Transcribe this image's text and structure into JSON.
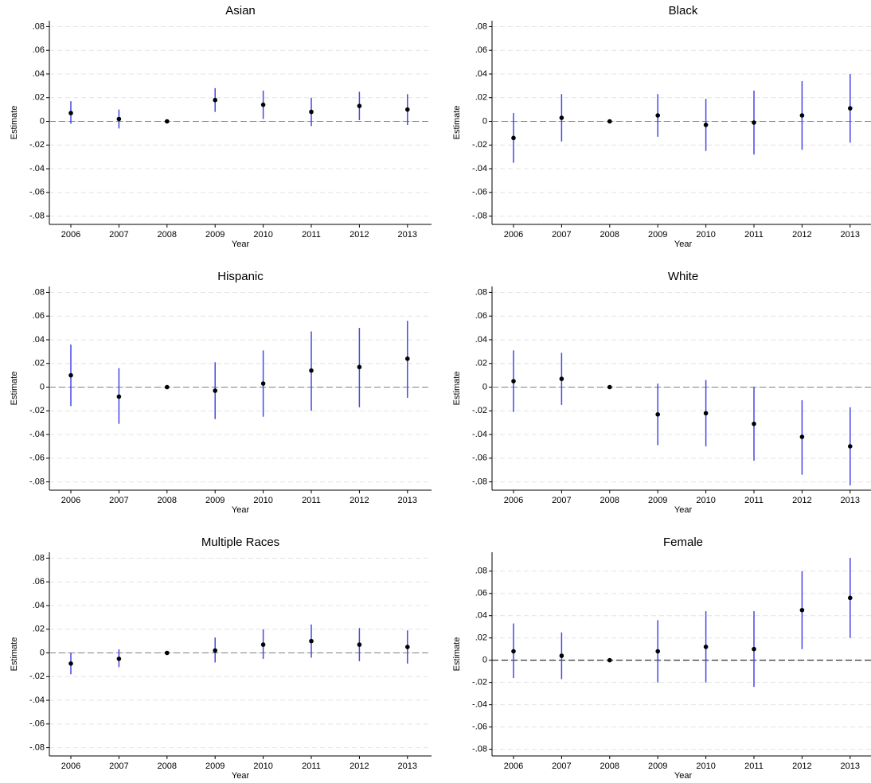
{
  "chart_data": [
    {
      "type": "errorbar",
      "title": "Asian",
      "xlabel": "Year",
      "ylabel": "Estimate",
      "categories": [
        "2006",
        "2007",
        "2008",
        "2009",
        "2010",
        "2011",
        "2012",
        "2013"
      ],
      "values": [
        0.007,
        0.002,
        0,
        0.018,
        0.014,
        0.008,
        0.013,
        0.01
      ],
      "lower": [
        -0.002,
        -0.006,
        0,
        0.008,
        0.002,
        -0.004,
        0.001,
        -0.003
      ],
      "upper": [
        0.017,
        0.01,
        0,
        0.028,
        0.026,
        0.02,
        0.025,
        0.023
      ],
      "point_color": "#000000",
      "bar_color": "#4646e6",
      "refline": 0,
      "refline_color": "#808080",
      "ylim": [
        -0.087,
        0.085
      ],
      "grid": true,
      "yticks": [
        {
          "value": -0.08,
          "label": "-.08"
        },
        {
          "value": -0.06,
          "label": "-.06"
        },
        {
          "value": -0.04,
          "label": "-.04"
        },
        {
          "value": -0.02,
          "label": "-.02"
        },
        0,
        {
          "value": 0.02,
          "label": ".02"
        },
        {
          "value": 0.04,
          "label": ".04"
        },
        {
          "value": 0.06,
          "label": ".06"
        },
        {
          "value": 0.08,
          "label": ".08"
        }
      ]
    },
    {
      "type": "errorbar",
      "title": "Black",
      "xlabel": "Year",
      "ylabel": "Estimate",
      "categories": [
        "2006",
        "2007",
        "2008",
        "2009",
        "2010",
        "2011",
        "2012",
        "2013"
      ],
      "values": [
        -0.014,
        0.003,
        0,
        0.005,
        -0.003,
        -0.001,
        0.005,
        0.011
      ],
      "lower": [
        -0.035,
        -0.017,
        0,
        -0.013,
        -0.025,
        -0.028,
        -0.024,
        -0.018
      ],
      "upper": [
        0.007,
        0.023,
        0,
        0.023,
        0.019,
        0.026,
        0.034,
        0.04
      ],
      "point_color": "#000000",
      "bar_color": "#4646e6",
      "refline": 0,
      "refline_color": "#808080",
      "ylim": [
        -0.087,
        0.085
      ],
      "grid": true,
      "yticks": [
        {
          "value": -0.08,
          "label": "-.08"
        },
        {
          "value": -0.06,
          "label": "-.06"
        },
        {
          "value": -0.04,
          "label": "-.04"
        },
        {
          "value": -0.02,
          "label": "-.02"
        },
        0,
        {
          "value": 0.02,
          "label": ".02"
        },
        {
          "value": 0.04,
          "label": ".04"
        },
        {
          "value": 0.06,
          "label": ".06"
        },
        {
          "value": 0.08,
          "label": ".08"
        }
      ]
    },
    {
      "type": "errorbar",
      "title": "Hispanic",
      "xlabel": "Year",
      "ylabel": "Estimate",
      "categories": [
        "2006",
        "2007",
        "2008",
        "2009",
        "2010",
        "2011",
        "2012",
        "2013"
      ],
      "values": [
        0.01,
        -0.008,
        0,
        -0.003,
        0.003,
        0.014,
        0.017,
        0.024
      ],
      "lower": [
        -0.016,
        -0.031,
        0,
        -0.027,
        -0.025,
        -0.02,
        -0.017,
        -0.009
      ],
      "upper": [
        0.036,
        0.016,
        0,
        0.021,
        0.031,
        0.047,
        0.05,
        0.056
      ],
      "point_color": "#000000",
      "bar_color": "#4646e6",
      "refline": 0,
      "refline_color": "#808080",
      "ylim": [
        -0.087,
        0.085
      ],
      "grid": true,
      "yticks": [
        {
          "value": -0.08,
          "label": "-.08"
        },
        {
          "value": -0.06,
          "label": "-.06"
        },
        {
          "value": -0.04,
          "label": "-.04"
        },
        {
          "value": -0.02,
          "label": "-.02"
        },
        0,
        {
          "value": 0.02,
          "label": ".02"
        },
        {
          "value": 0.04,
          "label": ".04"
        },
        {
          "value": 0.06,
          "label": ".06"
        },
        {
          "value": 0.08,
          "label": ".08"
        }
      ]
    },
    {
      "type": "errorbar",
      "title": "White",
      "xlabel": "Year",
      "ylabel": "Estimate",
      "categories": [
        "2006",
        "2007",
        "2008",
        "2009",
        "2010",
        "2011",
        "2012",
        "2013"
      ],
      "values": [
        0.005,
        0.007,
        0,
        -0.023,
        -0.022,
        -0.031,
        -0.042,
        -0.05
      ],
      "lower": [
        -0.021,
        -0.015,
        0,
        -0.049,
        -0.05,
        -0.062,
        -0.074,
        -0.083
      ],
      "upper": [
        0.031,
        0.029,
        0,
        0.003,
        0.006,
        0.0,
        -0.011,
        -0.017
      ],
      "point_color": "#000000",
      "bar_color": "#4646e6",
      "refline": 0,
      "refline_color": "#808080",
      "ylim": [
        -0.087,
        0.085
      ],
      "grid": true,
      "yticks": [
        {
          "value": -0.08,
          "label": "-.08"
        },
        {
          "value": -0.06,
          "label": "-.06"
        },
        {
          "value": -0.04,
          "label": "-.04"
        },
        {
          "value": -0.02,
          "label": "-.02"
        },
        0,
        {
          "value": 0.02,
          "label": ".02"
        },
        {
          "value": 0.04,
          "label": ".04"
        },
        {
          "value": 0.06,
          "label": ".06"
        },
        {
          "value": 0.08,
          "label": ".08"
        }
      ]
    },
    {
      "type": "errorbar",
      "title": "Multiple Races",
      "xlabel": "Year",
      "ylabel": "Estimate",
      "categories": [
        "2006",
        "2007",
        "2008",
        "2009",
        "2010",
        "2011",
        "2012",
        "2013"
      ],
      "values": [
        -0.009,
        -0.005,
        0,
        0.002,
        0.007,
        0.01,
        0.007,
        0.005
      ],
      "lower": [
        -0.018,
        -0.012,
        0,
        -0.008,
        -0.005,
        -0.004,
        -0.007,
        -0.009
      ],
      "upper": [
        0.0,
        0.003,
        0,
        0.013,
        0.02,
        0.024,
        0.021,
        0.019
      ],
      "point_color": "#000000",
      "bar_color": "#4646e6",
      "refline": 0,
      "refline_color": "#808080",
      "ylim": [
        -0.087,
        0.085
      ],
      "grid": true,
      "yticks": [
        {
          "value": -0.08,
          "label": "-.08"
        },
        {
          "value": -0.06,
          "label": "-.06"
        },
        {
          "value": -0.04,
          "label": "-.04"
        },
        {
          "value": -0.02,
          "label": "-.02"
        },
        0,
        {
          "value": 0.02,
          "label": ".02"
        },
        {
          "value": 0.04,
          "label": ".04"
        },
        {
          "value": 0.06,
          "label": ".06"
        },
        {
          "value": 0.08,
          "label": ".08"
        }
      ]
    },
    {
      "type": "errorbar",
      "title": "Female",
      "xlabel": "Year",
      "ylabel": "Estimate",
      "categories": [
        "2006",
        "2007",
        "2008",
        "2009",
        "2010",
        "2011",
        "2012",
        "2013"
      ],
      "values": [
        0.008,
        0.004,
        0,
        0.008,
        0.012,
        0.01,
        0.045,
        0.056
      ],
      "lower": [
        -0.016,
        -0.017,
        0,
        -0.02,
        -0.02,
        -0.024,
        0.01,
        0.02
      ],
      "upper": [
        0.033,
        0.025,
        0,
        0.036,
        0.044,
        0.044,
        0.08,
        0.092
      ],
      "point_color": "#000000",
      "bar_color": "#4646e6",
      "refline": 0,
      "refline_color": "#000000",
      "ylim": [
        -0.086,
        0.097
      ],
      "grid": true,
      "yticks": [
        {
          "value": -0.08,
          "label": "-.08"
        },
        {
          "value": -0.06,
          "label": "-.06"
        },
        {
          "value": -0.04,
          "label": "-.04"
        },
        {
          "value": -0.02,
          "label": "-.02"
        },
        0,
        {
          "value": 0.02,
          "label": ".02"
        },
        {
          "value": 0.04,
          "label": ".04"
        },
        {
          "value": 0.06,
          "label": ".06"
        },
        {
          "value": 0.08,
          "label": ".08"
        }
      ]
    }
  ]
}
